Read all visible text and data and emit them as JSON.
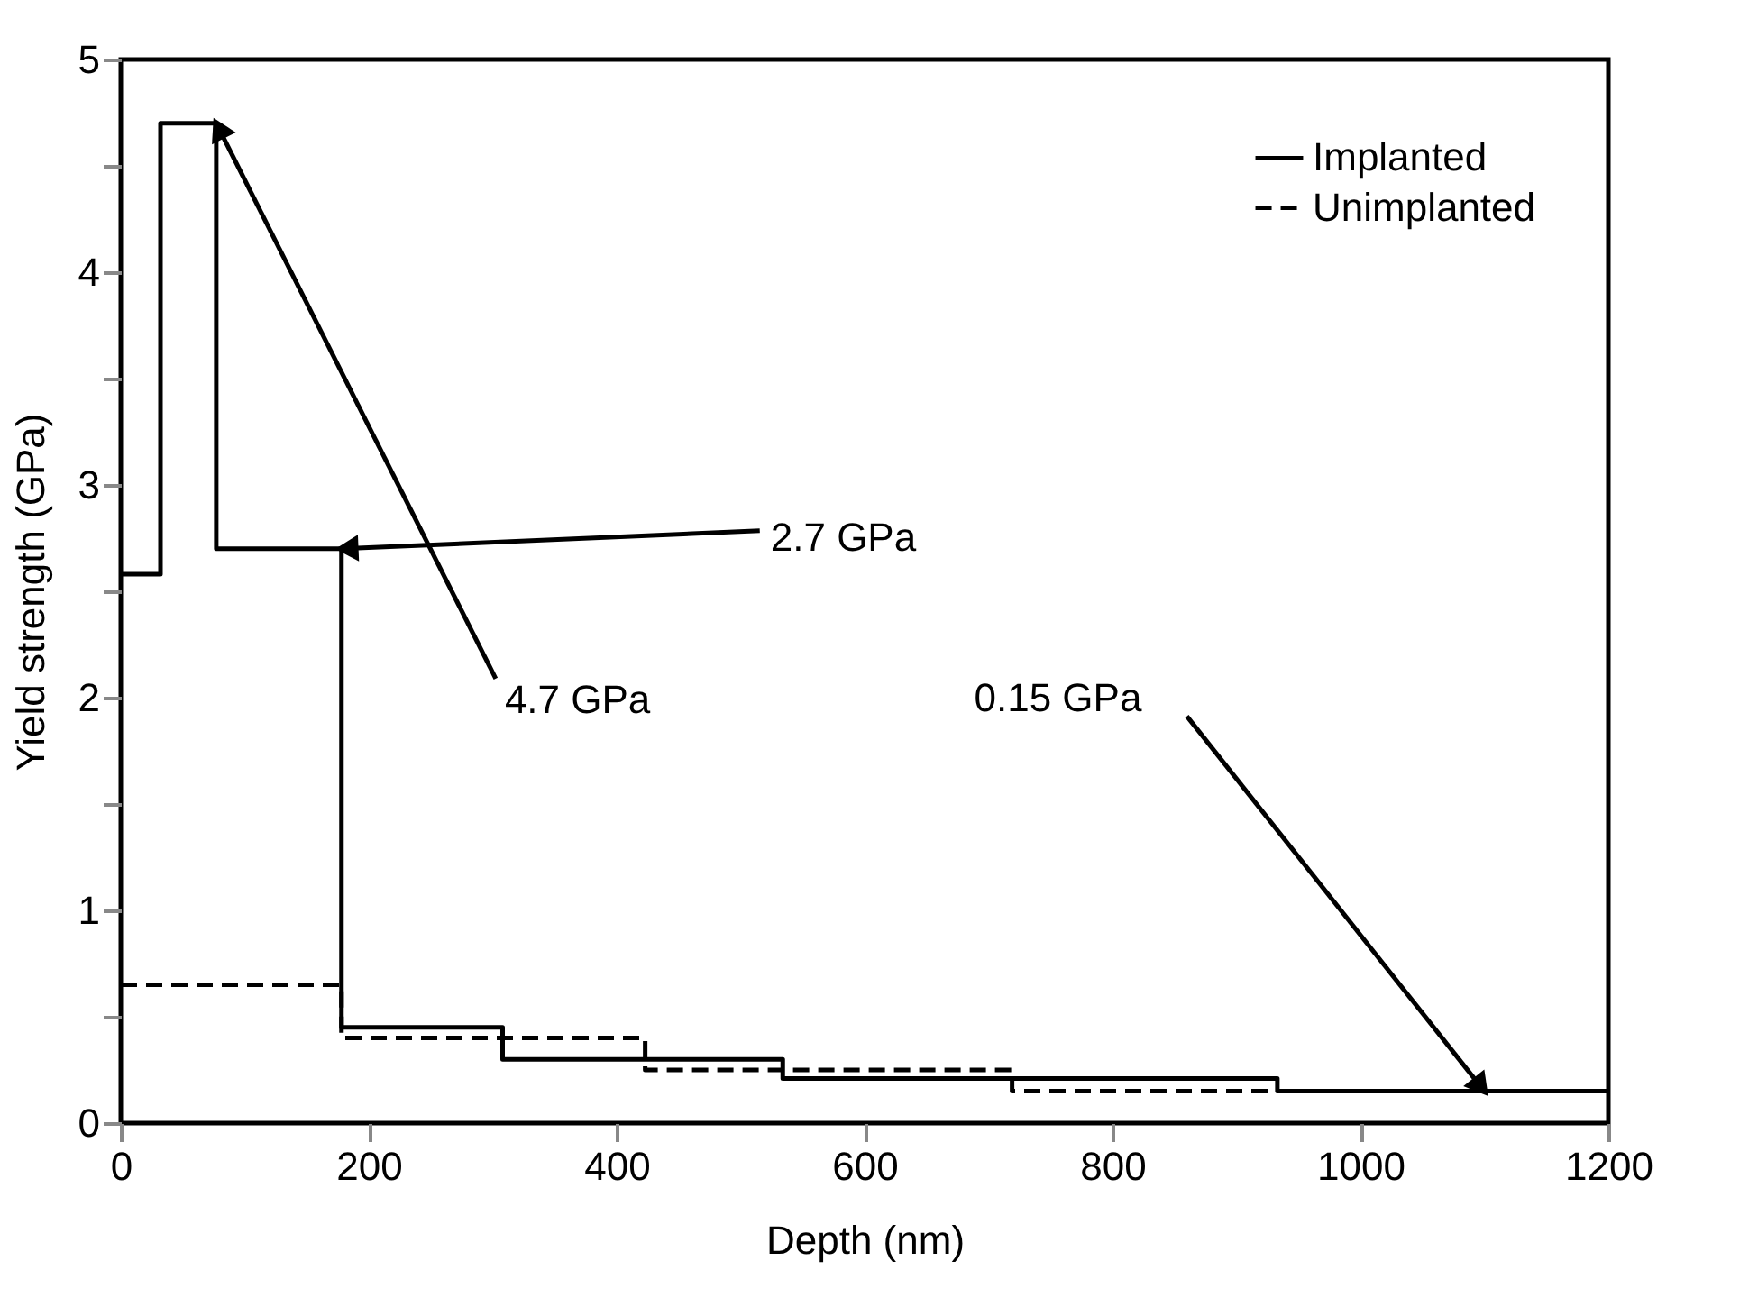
{
  "chart_data": {
    "type": "step",
    "xlabel": "Depth (nm)",
    "ylabel": "Yield strength (GPa)",
    "series": [
      {
        "name": "Implanted",
        "color": "#000000",
        "line_style": "solid",
        "x": [
          0,
          32,
          77,
          178,
          308,
          534,
          933,
          1200
        ],
        "values": [
          2.58,
          4.7,
          2.7,
          0.45,
          0.3,
          0.21,
          0.15,
          0.15
        ]
      },
      {
        "name": "Unimplanted",
        "color": "#000000",
        "line_style": "dashed",
        "x": [
          0,
          178,
          423,
          719,
          933
        ],
        "values": [
          0.65,
          0.4,
          0.25,
          0.15,
          0.15
        ]
      }
    ],
    "xlim": [
      0,
      1200
    ],
    "xticks": [
      0,
      200,
      400,
      600,
      800,
      1000,
      1200
    ],
    "ylim": [
      0,
      5
    ],
    "yticks": [
      0,
      {
        "value": 0.5,
        "label": null
      },
      1,
      {
        "value": 1.5,
        "label": null
      },
      2,
      {
        "value": 2.5,
        "label": null
      },
      3,
      {
        "value": 3.5,
        "label": null
      },
      4,
      {
        "value": 4.5,
        "label": null
      },
      5
    ],
    "annotations": [
      {
        "text": "4.7 GPa",
        "x": 77,
        "y": 4.7
      },
      {
        "text": "2.7 GPa",
        "x": 178,
        "y": 2.7
      },
      {
        "text": "0.15 GPa",
        "x": 1100,
        "y": 0.15
      }
    ],
    "grid": false,
    "legend": "top right",
    "marker": "none"
  }
}
